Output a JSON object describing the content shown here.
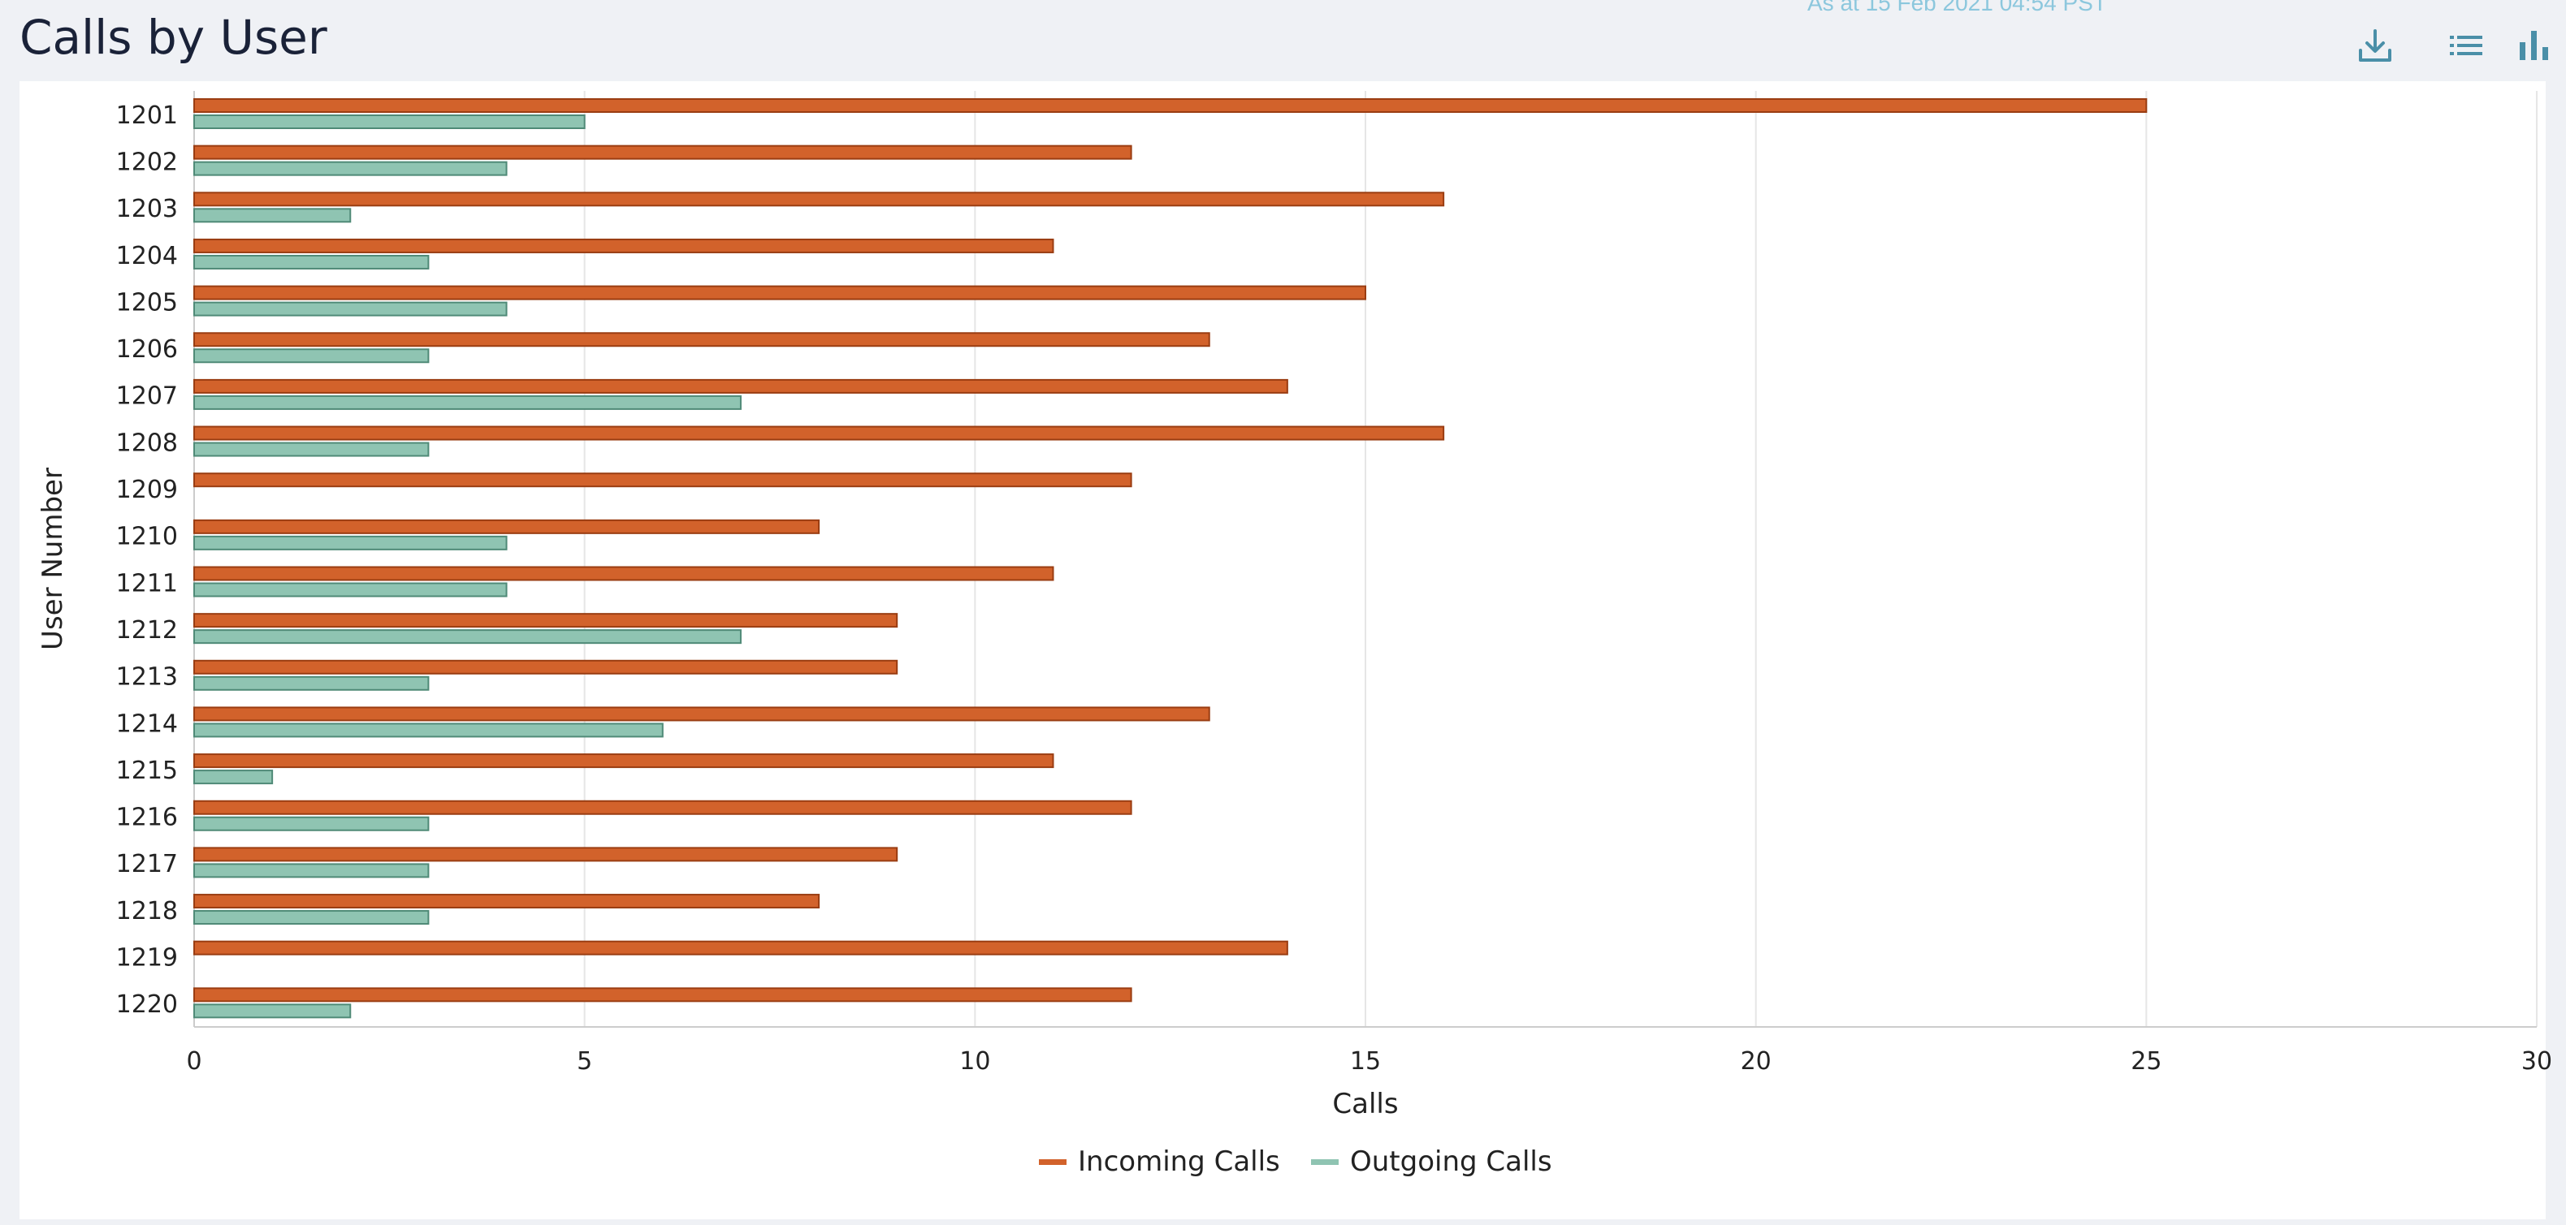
{
  "header": {
    "title": "Calls by User",
    "timestamp": "As at 15 Feb 2021 04:54 PST"
  },
  "toolbar": {
    "download": "download-icon",
    "list_view": "list-icon",
    "chart_view": "bar-chart-icon"
  },
  "colors": {
    "incoming": "#d2622b",
    "incoming_border": "#9a3d12",
    "outgoing": "#8fc4b2",
    "outgoing_border": "#4f8a77",
    "icon": "#4a8fa8",
    "grid": "#e6e6e6",
    "text": "#222222"
  },
  "chart_data": {
    "type": "bar",
    "orientation": "horizontal",
    "title": "",
    "xlabel": "Calls",
    "ylabel": "User Number",
    "xlim": [
      0,
      30
    ],
    "xticks": [
      0,
      5,
      10,
      15,
      20,
      25,
      30
    ],
    "grid": true,
    "legend_position": "bottom",
    "categories": [
      "1201",
      "1202",
      "1203",
      "1204",
      "1205",
      "1206",
      "1207",
      "1208",
      "1209",
      "1210",
      "1211",
      "1212",
      "1213",
      "1214",
      "1215",
      "1216",
      "1217",
      "1218",
      "1219",
      "1220"
    ],
    "series": [
      {
        "name": "Incoming Calls",
        "values": [
          25,
          12,
          16,
          11,
          15,
          13,
          14,
          16,
          12,
          8,
          11,
          9,
          9,
          13,
          11,
          12,
          9,
          8,
          14,
          12
        ]
      },
      {
        "name": "Outgoing Calls",
        "values": [
          5,
          4,
          2,
          3,
          4,
          3,
          7,
          3,
          0,
          4,
          4,
          7,
          3,
          6,
          1,
          3,
          3,
          3,
          0,
          2
        ]
      }
    ]
  }
}
